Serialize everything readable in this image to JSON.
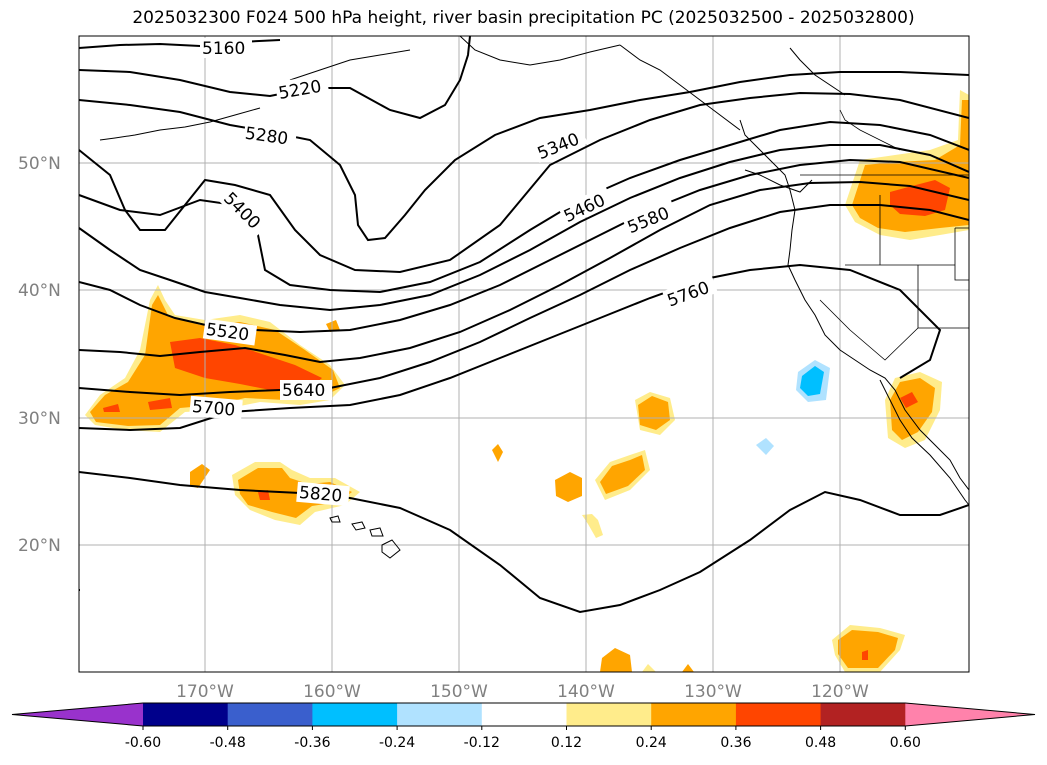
{
  "title": "2025032300 F024 500 hPa height, river basin precipitation PC (2025032500 - 2025032800)",
  "map": {
    "lat_labels": [
      "50°N",
      "40°N",
      "30°N",
      "20°N"
    ],
    "lon_labels": [
      "170°W",
      "160°W",
      "150°W",
      "140°W",
      "130°W",
      "120°W"
    ],
    "contour_labels": [
      "5160",
      "5220",
      "5280",
      "5340",
      "5400",
      "5460",
      "5520",
      "5580",
      "5640",
      "5700",
      "5760",
      "5820"
    ],
    "colors": {
      "grid": "#b0b0b0",
      "contour": "#000000",
      "tick_label": "#808080"
    }
  },
  "colorbar": {
    "tick_labels": [
      "-0.60",
      "-0.48",
      "-0.36",
      "-0.24",
      "-0.12",
      "0.12",
      "0.24",
      "0.36",
      "0.48",
      "0.60"
    ],
    "colors": [
      "#9932cc",
      "#00008b",
      "#3a5fcd",
      "#00bfff",
      "#b0e2ff",
      "#ffffff",
      "#ffec8b",
      "#ffa500",
      "#ff4500",
      "#b22222",
      "#ff82ab"
    ]
  }
}
